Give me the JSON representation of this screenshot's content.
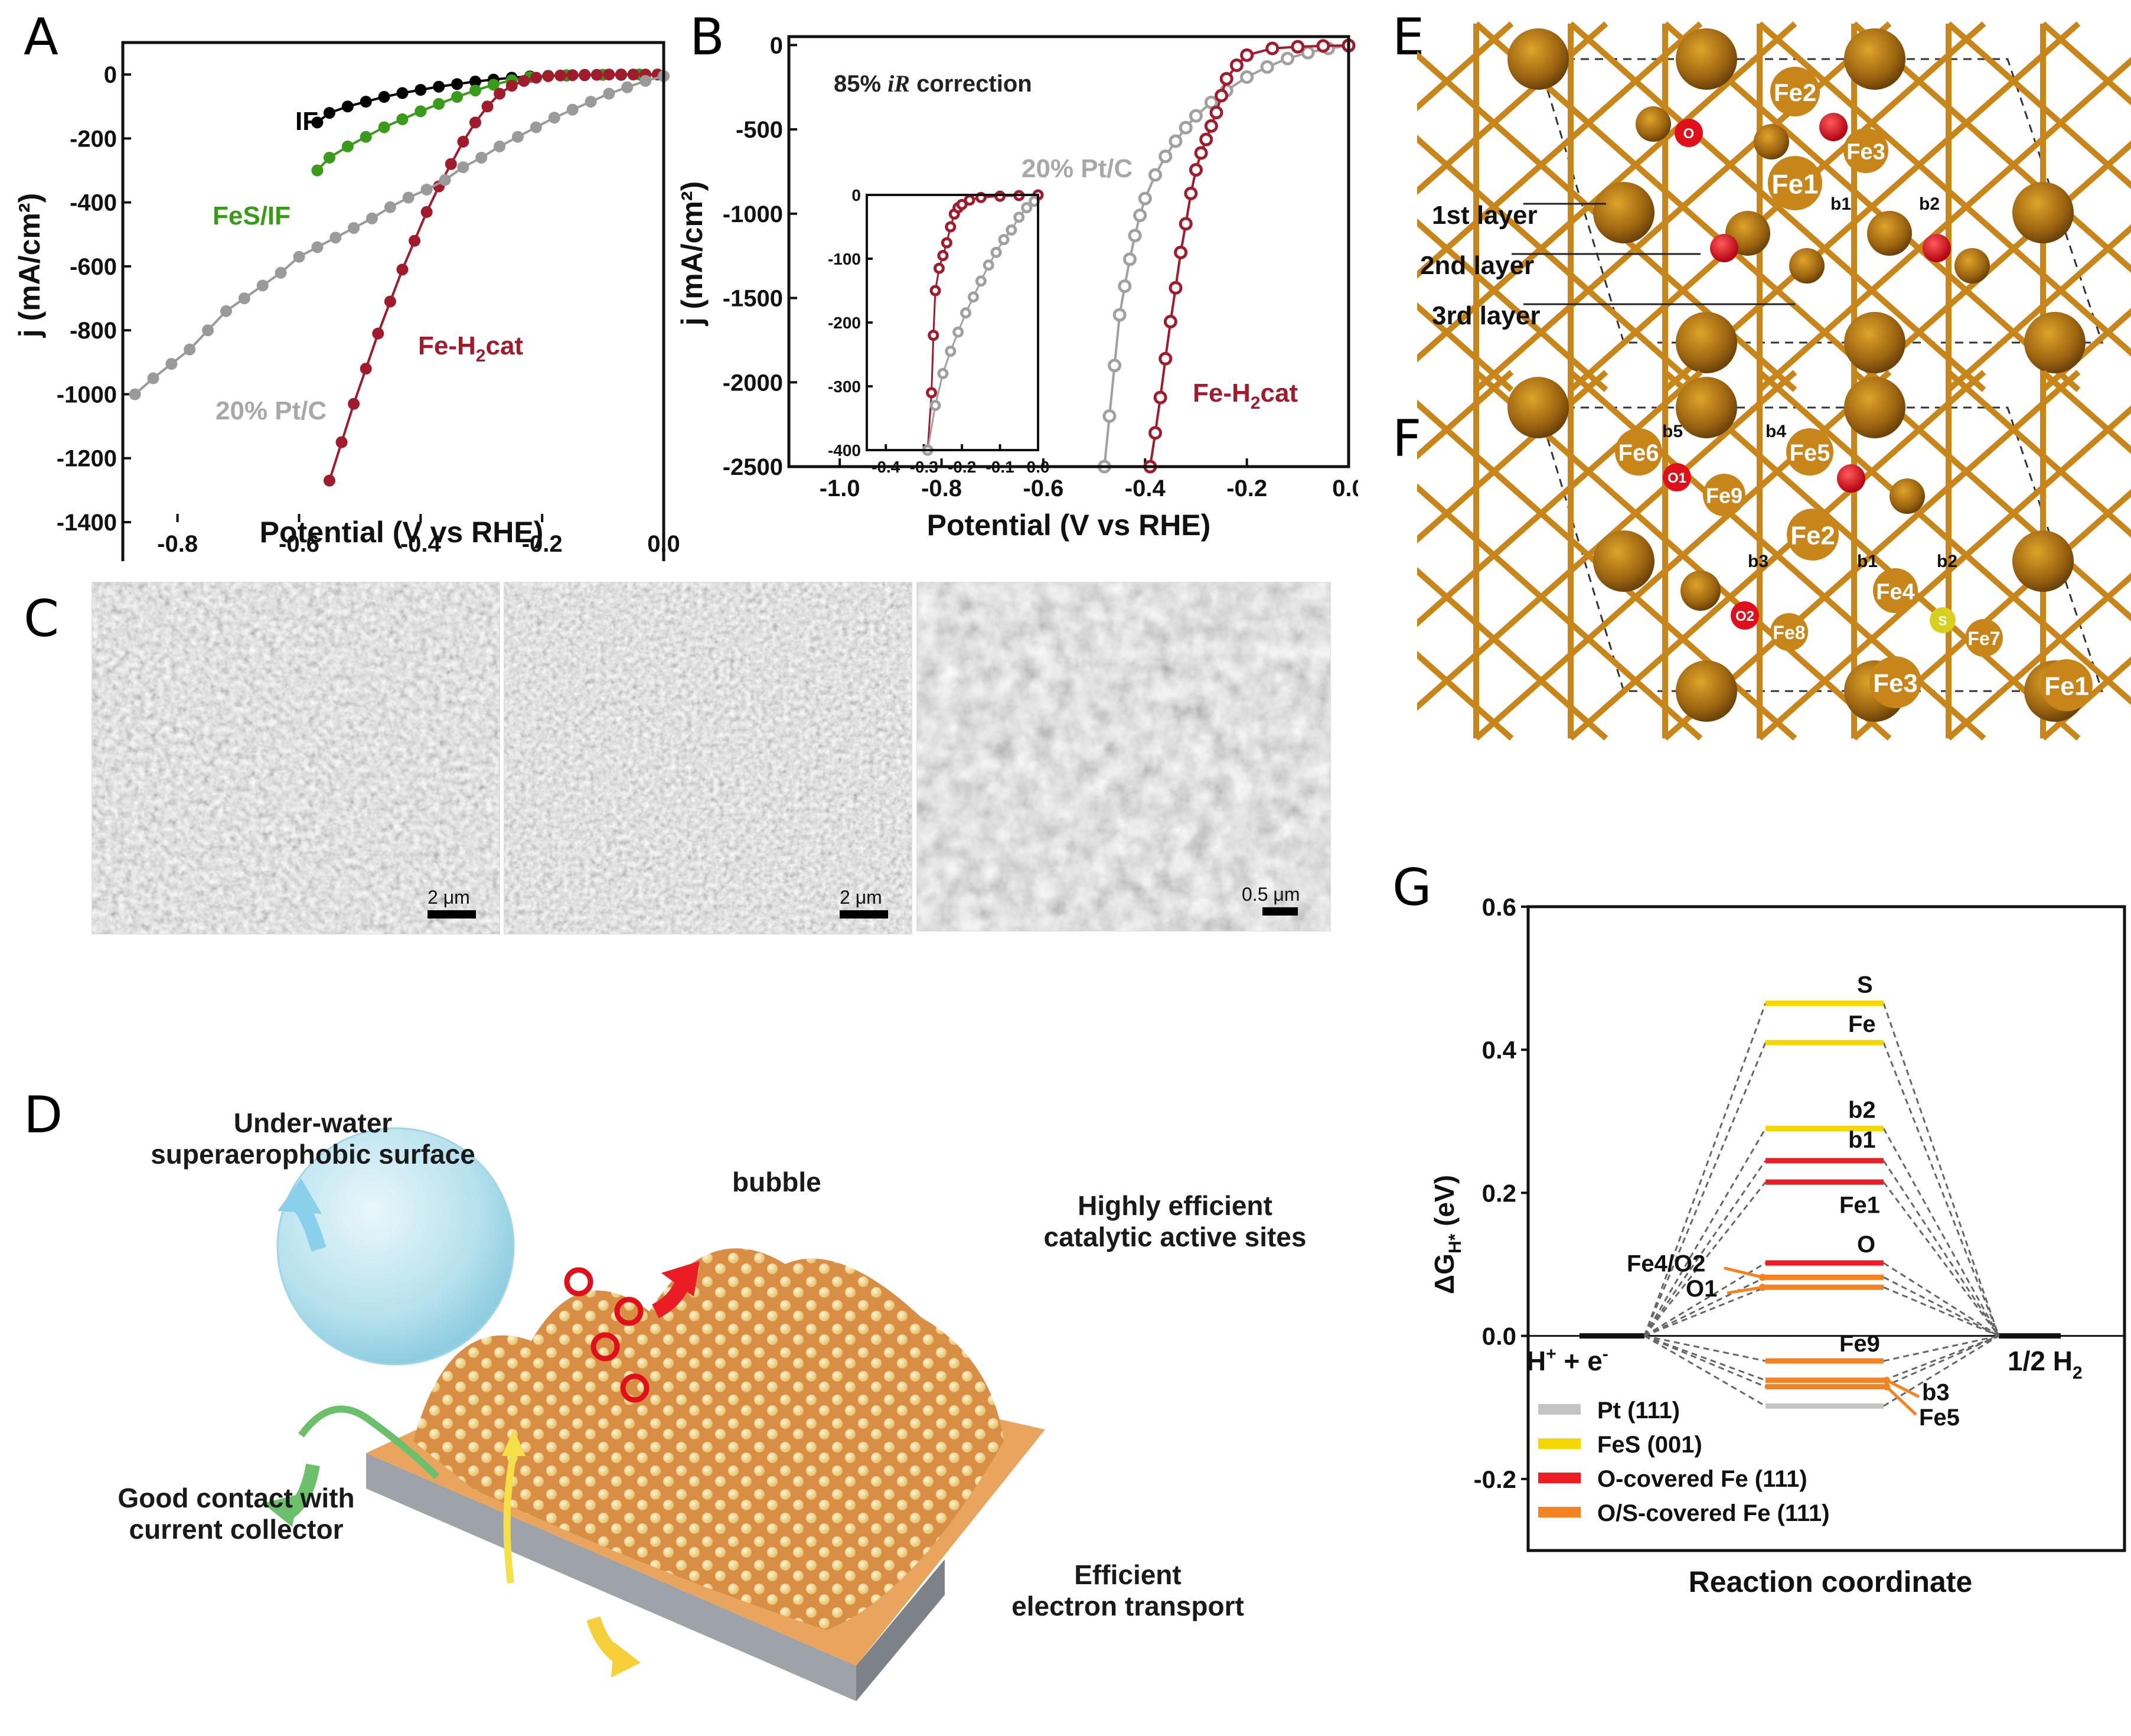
{
  "panels": {
    "A": "A",
    "B": "B",
    "C": "C",
    "D": "D",
    "E": "E",
    "F": "F",
    "G": "G"
  },
  "chart_data": [
    {
      "id": "A",
      "type": "line",
      "title": "",
      "xlabel": "Potential (V vs RHE)",
      "ylabel": "j (mA/cm²)",
      "xlim": [
        -0.89,
        0.0
      ],
      "ylim": [
        -1400,
        100
      ],
      "xticks": [
        "-0.8",
        "-0.6",
        "-0.4",
        "-0.2",
        "0.0"
      ],
      "yticks": [
        "0",
        "-200",
        "-400",
        "-600",
        "-800",
        "-1000",
        "-1200",
        "-1400"
      ],
      "series": [
        {
          "name": "IF",
          "color": "#000000",
          "x": [
            -0.57,
            -0.55,
            -0.52,
            -0.49,
            -0.46,
            -0.43,
            -0.4,
            -0.37,
            -0.34,
            -0.31,
            -0.28,
            -0.25,
            -0.22,
            -0.19,
            -0.16,
            -0.13,
            -0.1,
            -0.07,
            -0.04,
            -0.01
          ],
          "y": [
            -150,
            -120,
            -100,
            -85,
            -70,
            -58,
            -48,
            -38,
            -30,
            -22,
            -16,
            -10,
            -6,
            -4,
            -3,
            -2,
            -1,
            -1,
            0,
            0
          ]
        },
        {
          "name": "FeS/IF",
          "color": "#3a9a1a",
          "x": [
            -0.57,
            -0.55,
            -0.52,
            -0.49,
            -0.46,
            -0.43,
            -0.4,
            -0.37,
            -0.34,
            -0.31,
            -0.28,
            -0.25,
            -0.22,
            -0.19,
            -0.16,
            -0.13,
            -0.1,
            -0.07,
            -0.04,
            -0.01
          ],
          "y": [
            -300,
            -260,
            -225,
            -195,
            -165,
            -140,
            -115,
            -92,
            -70,
            -50,
            -32,
            -18,
            -8,
            -4,
            -2,
            -1,
            -1,
            0,
            0,
            0
          ]
        },
        {
          "name": "Fe-H2cat",
          "color": "#a01c2c",
          "x": [
            -0.55,
            -0.53,
            -0.51,
            -0.49,
            -0.47,
            -0.45,
            -0.43,
            -0.41,
            -0.39,
            -0.37,
            -0.35,
            -0.33,
            -0.31,
            -0.29,
            -0.27,
            -0.25,
            -0.23,
            -0.21,
            -0.19,
            -0.17,
            -0.15,
            -0.13,
            -0.11,
            -0.09,
            -0.07,
            -0.05,
            -0.03,
            -0.01
          ],
          "y": [
            -1270,
            -1150,
            -1030,
            -920,
            -810,
            -710,
            -610,
            -520,
            -430,
            -350,
            -280,
            -210,
            -150,
            -100,
            -60,
            -35,
            -20,
            -10,
            -5,
            -3,
            -2,
            -1,
            -1,
            0,
            0,
            0,
            0,
            0
          ]
        },
        {
          "name": "20% Pt/C",
          "color": "#9a9a9a",
          "x": [
            -0.87,
            -0.84,
            -0.81,
            -0.78,
            -0.75,
            -0.72,
            -0.69,
            -0.66,
            -0.63,
            -0.6,
            -0.57,
            -0.54,
            -0.51,
            -0.48,
            -0.45,
            -0.42,
            -0.39,
            -0.36,
            -0.33,
            -0.3,
            -0.27,
            -0.24,
            -0.21,
            -0.18,
            -0.15,
            -0.12,
            -0.09,
            -0.06,
            -0.03,
            0.0
          ],
          "y": [
            -1000,
            -950,
            -905,
            -860,
            -800,
            -740,
            -700,
            -660,
            -620,
            -570,
            -540,
            -510,
            -480,
            -450,
            -415,
            -385,
            -360,
            -330,
            -290,
            -260,
            -225,
            -195,
            -165,
            -135,
            -110,
            -85,
            -60,
            -40,
            -20,
            -5
          ]
        }
      ],
      "annotations": [
        "IF",
        "FeS/IF",
        "20% Pt/C",
        "Fe-H2cat"
      ]
    },
    {
      "id": "B",
      "type": "line",
      "title": "",
      "annotation": "85% iR correction",
      "xlabel": "Potential (V vs RHE)",
      "ylabel": "j (mA/cm²)",
      "xlim": [
        -1.1,
        0.0
      ],
      "ylim": [
        -2500,
        50
      ],
      "xticks": [
        "-1.0",
        "-0.8",
        "-0.6",
        "-0.4",
        "-0.2",
        "0.0"
      ],
      "yticks": [
        "0",
        "-500",
        "-1000",
        "-1500",
        "-2000",
        "-2500"
      ],
      "series": [
        {
          "name": "20% Pt/C",
          "color": "#a0a0a0",
          "x": [
            -0.48,
            -0.47,
            -0.46,
            -0.45,
            -0.44,
            -0.43,
            -0.42,
            -0.41,
            -0.4,
            -0.38,
            -0.36,
            -0.34,
            -0.32,
            -0.3,
            -0.27,
            -0.24,
            -0.2,
            -0.16,
            -0.12,
            -0.08,
            -0.04,
            0.0
          ],
          "y": [
            -2500,
            -2200,
            -1900,
            -1600,
            -1430,
            -1270,
            -1130,
            -1010,
            -910,
            -770,
            -660,
            -570,
            -490,
            -420,
            -340,
            -270,
            -190,
            -130,
            -80,
            -45,
            -20,
            -5
          ]
        },
        {
          "name": "Fe-H2cat",
          "color": "#a01c2c",
          "x": [
            -0.39,
            -0.38,
            -0.37,
            -0.36,
            -0.35,
            -0.34,
            -0.33,
            -0.32,
            -0.31,
            -0.3,
            -0.29,
            -0.28,
            -0.27,
            -0.26,
            -0.25,
            -0.24,
            -0.22,
            -0.2,
            -0.15,
            -0.1,
            -0.05,
            0.0
          ],
          "y": [
            -2500,
            -2300,
            -2090,
            -1860,
            -1640,
            -1440,
            -1230,
            -1060,
            -880,
            -740,
            -640,
            -560,
            -480,
            -400,
            -300,
            -200,
            -120,
            -60,
            -20,
            -10,
            -5,
            -2
          ]
        }
      ],
      "inset": {
        "xlim": [
          -0.45,
          0.0
        ],
        "ylim": [
          -400,
          0
        ],
        "xticks": [
          "-0.4",
          "-0.3",
          "-0.2",
          "-0.1",
          "0.0"
        ],
        "yticks": [
          "0",
          "-100",
          "-200",
          "-300",
          "-400"
        ],
        "series": [
          {
            "name": "Fe-H2cat",
            "color": "#a01c2c",
            "x": [
              -0.29,
              -0.28,
              -0.275,
              -0.27,
              -0.26,
              -0.25,
              -0.24,
              -0.23,
              -0.22,
              -0.21,
              -0.2,
              -0.18,
              -0.15,
              -0.1,
              -0.05,
              0.0
            ],
            "y": [
              -400,
              -310,
              -220,
              -150,
              -115,
              -95,
              -75,
              -50,
              -30,
              -20,
              -15,
              -8,
              -4,
              -2,
              -1,
              0
            ]
          },
          {
            "name": "20% Pt/C",
            "color": "#a0a0a0",
            "x": [
              -0.29,
              -0.27,
              -0.25,
              -0.23,
              -0.21,
              -0.19,
              -0.17,
              -0.15,
              -0.13,
              -0.11,
              -0.09,
              -0.07,
              -0.05,
              -0.03,
              -0.01
            ],
            "y": [
              -400,
              -330,
              -280,
              -245,
              -215,
              -185,
              -160,
              -135,
              -110,
              -90,
              -70,
              -55,
              -35,
              -20,
              -10
            ]
          }
        ]
      }
    },
    {
      "id": "G",
      "type": "energy-level-diagram",
      "xlabel": "Reaction coordinate",
      "ylabel": "ΔG_H* (eV)",
      "ylim": [
        -0.3,
        0.6
      ],
      "yticks": [
        "0.6",
        "0.4",
        "0.2",
        "0.0",
        "-0.2"
      ],
      "start_label": "H⁺ + e⁻",
      "end_label": "1/2 H₂",
      "levels": [
        {
          "label": "S",
          "value": 0.465,
          "group": "FeS (001)"
        },
        {
          "label": "Fe",
          "value": 0.41,
          "group": "FeS (001)"
        },
        {
          "label": "b2",
          "value": 0.29,
          "group": "FeS (001)"
        },
        {
          "label": "b1",
          "value": 0.245,
          "group": "O-covered Fe (111)"
        },
        {
          "label": "Fe1",
          "value": 0.215,
          "group": "O-covered Fe (111)"
        },
        {
          "label": "O",
          "value": 0.102,
          "group": "O-covered Fe (111)"
        },
        {
          "label": "Fe4/O2",
          "value": 0.082,
          "group": "O/S-covered Fe (111)"
        },
        {
          "label": "O1",
          "value": 0.068,
          "group": "O/S-covered Fe (111)"
        },
        {
          "label": "Fe9",
          "value": -0.035,
          "group": "O/S-covered Fe (111)"
        },
        {
          "label": "b3",
          "value": -0.062,
          "group": "O/S-covered Fe (111)"
        },
        {
          "label": "Fe5",
          "value": -0.071,
          "group": "O/S-covered Fe (111)"
        },
        {
          "label": "",
          "value": -0.098,
          "group": "Pt (111)"
        }
      ],
      "legend": [
        {
          "label": "Pt (111)",
          "color": "#c4c4c4"
        },
        {
          "label": "FeS (001)",
          "color": "#f5d800"
        },
        {
          "label": "O-covered Fe (111)",
          "color": "#ee1c24"
        },
        {
          "label": "O/S-covered Fe (111)",
          "color": "#f58220"
        }
      ]
    }
  ],
  "panelA": {
    "xlabel": "Potential (V vs RHE)",
    "ylabel": "j (mA/cm²)",
    "labels": {
      "IF": "IF",
      "FeS": "FeS/IF",
      "Pt": "20% Pt/C",
      "FeH2": "Fe-H",
      "FeH2_sub": "2",
      "FeH2_tail": "cat"
    }
  },
  "panelB": {
    "xlabel": "Potential (V vs RHE)",
    "ylabel": "j (mA/cm²)",
    "annotation_prefix": "85% ",
    "annotation_italic": "iR",
    "annotation_suffix": " correction",
    "labels": {
      "Pt": "20% Pt/C",
      "FeH2": "Fe-H",
      "FeH2_sub": "2",
      "FeH2_tail": "cat"
    }
  },
  "panelC": {
    "images": [
      {
        "scale": "2 μm"
      },
      {
        "scale": "2 μm"
      },
      {
        "scale": "0.5 μm"
      }
    ]
  },
  "panelD": {
    "labels": {
      "underwater_1": "Under-water",
      "underwater_2": "superaerophobic surface",
      "bubble": "bubble",
      "sites_1": "Highly efficient",
      "sites_2": "catalytic active sites",
      "contact_1": "Good contact with",
      "contact_2": "current collector",
      "electron_1": "Efficient",
      "electron_2": "electron transport"
    }
  },
  "panelE": {
    "layers": [
      "1st layer",
      "2nd layer",
      "3rd layer"
    ],
    "atoms": [
      "O",
      "Fe2",
      "Fe3",
      "Fe1"
    ],
    "bridges": [
      "b1",
      "b2"
    ]
  },
  "panelF": {
    "atoms": [
      "Fe6",
      "O1",
      "Fe9",
      "Fe5",
      "Fe2",
      "Fe4",
      "S",
      "O2",
      "Fe8",
      "Fe7",
      "Fe3",
      "Fe1"
    ],
    "bridges": [
      "b5",
      "b4",
      "b3",
      "b1",
      "b2"
    ]
  },
  "panelG": {
    "xlabel": "Reaction coordinate",
    "ylabel_main": "ΔG",
    "ylabel_sub": "H*",
    "ylabel_unit": " (eV)",
    "start_main": "H",
    "start_sup": "+",
    "start_mid": " + e",
    "start_sup2": "-",
    "end_main": "1/2 H",
    "end_sub": "2"
  }
}
